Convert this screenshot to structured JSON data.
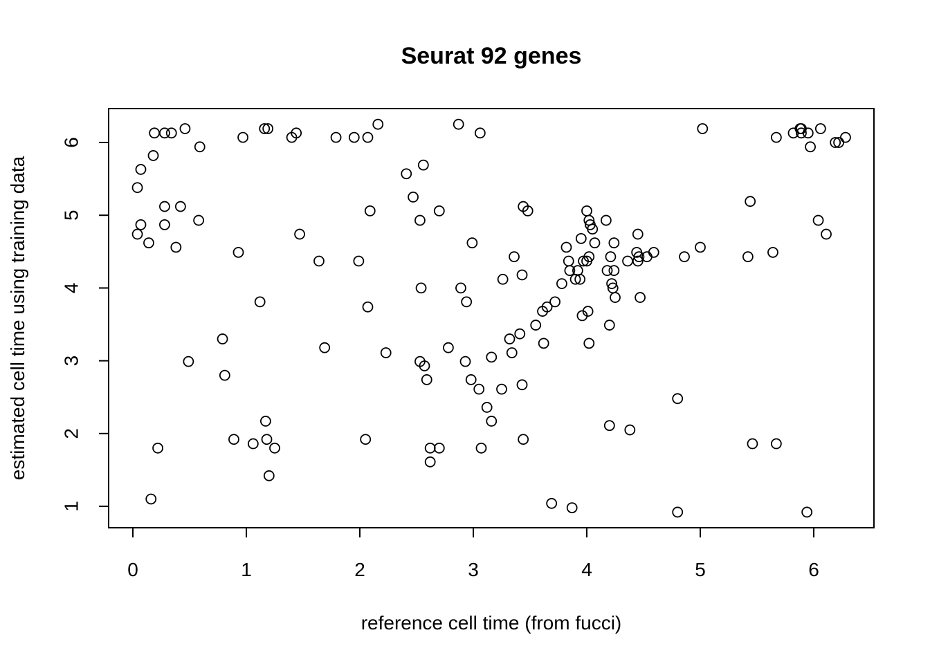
{
  "chart_data": {
    "type": "scatter",
    "title": "Seurat 92 genes",
    "xlabel": "reference cell time (from fucci)",
    "ylabel": "estimated cell time using training data",
    "xlim": [
      -0.2,
      6.5
    ],
    "ylim": [
      0.75,
      6.5
    ],
    "xticks": [
      0,
      1,
      2,
      3,
      4,
      5,
      6
    ],
    "yticks": [
      1,
      2,
      3,
      4,
      5,
      6
    ],
    "marker": "open-circle",
    "grid": false,
    "points": [
      [
        0.04,
        4.74
      ],
      [
        0.04,
        5.38
      ],
      [
        0.07,
        5.63
      ],
      [
        0.07,
        4.87
      ],
      [
        0.14,
        4.62
      ],
      [
        0.16,
        1.1
      ],
      [
        0.18,
        5.82
      ],
      [
        0.19,
        6.13
      ],
      [
        0.22,
        1.8
      ],
      [
        0.28,
        6.13
      ],
      [
        0.28,
        5.12
      ],
      [
        0.28,
        4.87
      ],
      [
        0.34,
        6.13
      ],
      [
        0.38,
        4.56
      ],
      [
        0.42,
        5.12
      ],
      [
        0.46,
        6.19
      ],
      [
        0.49,
        2.99
      ],
      [
        0.58,
        4.93
      ],
      [
        0.59,
        5.94
      ],
      [
        0.79,
        3.3
      ],
      [
        0.81,
        2.8
      ],
      [
        0.89,
        1.92
      ],
      [
        0.93,
        4.49
      ],
      [
        0.97,
        6.07
      ],
      [
        1.06,
        1.86
      ],
      [
        1.12,
        3.81
      ],
      [
        1.16,
        6.19
      ],
      [
        1.17,
        2.17
      ],
      [
        1.18,
        1.92
      ],
      [
        1.19,
        6.19
      ],
      [
        1.2,
        1.42
      ],
      [
        1.25,
        1.8
      ],
      [
        1.4,
        6.07
      ],
      [
        1.44,
        6.13
      ],
      [
        1.47,
        4.74
      ],
      [
        1.64,
        4.37
      ],
      [
        1.69,
        3.18
      ],
      [
        1.79,
        6.07
      ],
      [
        1.95,
        6.07
      ],
      [
        1.99,
        4.37
      ],
      [
        2.05,
        1.92
      ],
      [
        2.07,
        6.07
      ],
      [
        2.07,
        3.74
      ],
      [
        2.09,
        5.06
      ],
      [
        2.16,
        6.25
      ],
      [
        2.23,
        3.11
      ],
      [
        2.41,
        5.57
      ],
      [
        2.47,
        5.25
      ],
      [
        2.53,
        4.93
      ],
      [
        2.53,
        2.99
      ],
      [
        2.54,
        4.0
      ],
      [
        2.56,
        5.69
      ],
      [
        2.57,
        2.93
      ],
      [
        2.59,
        2.74
      ],
      [
        2.62,
        1.8
      ],
      [
        2.62,
        1.61
      ],
      [
        2.7,
        5.06
      ],
      [
        2.7,
        1.8
      ],
      [
        2.78,
        3.18
      ],
      [
        2.87,
        6.25
      ],
      [
        2.89,
        4.0
      ],
      [
        2.93,
        2.99
      ],
      [
        2.94,
        3.81
      ],
      [
        2.98,
        2.74
      ],
      [
        2.99,
        4.62
      ],
      [
        3.05,
        2.61
      ],
      [
        3.06,
        6.13
      ],
      [
        3.07,
        1.8
      ],
      [
        3.12,
        2.36
      ],
      [
        3.16,
        3.05
      ],
      [
        3.16,
        2.17
      ],
      [
        3.25,
        2.61
      ],
      [
        3.26,
        4.12
      ],
      [
        3.32,
        3.3
      ],
      [
        3.34,
        3.11
      ],
      [
        3.36,
        4.43
      ],
      [
        3.41,
        3.37
      ],
      [
        3.43,
        2.67
      ],
      [
        3.43,
        4.18
      ],
      [
        3.44,
        1.92
      ],
      [
        3.44,
        5.12
      ],
      [
        3.48,
        5.06
      ],
      [
        3.55,
        3.49
      ],
      [
        3.61,
        3.68
      ],
      [
        3.62,
        3.24
      ],
      [
        3.65,
        3.74
      ],
      [
        3.69,
        1.04
      ],
      [
        3.72,
        3.81
      ],
      [
        3.78,
        4.06
      ],
      [
        3.82,
        4.56
      ],
      [
        3.84,
        4.37
      ],
      [
        3.85,
        4.24
      ],
      [
        3.87,
        0.98
      ],
      [
        3.9,
        4.12
      ],
      [
        3.92,
        4.24
      ],
      [
        3.94,
        4.12
      ],
      [
        3.95,
        4.68
      ],
      [
        3.96,
        3.62
      ],
      [
        3.97,
        4.37
      ],
      [
        4.0,
        4.37
      ],
      [
        4.0,
        5.06
      ],
      [
        4.01,
        3.68
      ],
      [
        4.02,
        4.43
      ],
      [
        4.02,
        3.24
      ],
      [
        4.02,
        4.93
      ],
      [
        4.03,
        4.87
      ],
      [
        4.05,
        4.81
      ],
      [
        4.07,
        4.62
      ],
      [
        4.17,
        4.93
      ],
      [
        4.18,
        4.24
      ],
      [
        4.2,
        3.49
      ],
      [
        4.2,
        2.11
      ],
      [
        4.21,
        4.43
      ],
      [
        4.22,
        4.06
      ],
      [
        4.23,
        4.0
      ],
      [
        4.24,
        4.62
      ],
      [
        4.24,
        4.24
      ],
      [
        4.25,
        3.87
      ],
      [
        4.36,
        4.37
      ],
      [
        4.38,
        2.05
      ],
      [
        4.44,
        4.49
      ],
      [
        4.45,
        4.74
      ],
      [
        4.45,
        4.37
      ],
      [
        4.46,
        4.43
      ],
      [
        4.47,
        3.87
      ],
      [
        4.53,
        4.43
      ],
      [
        4.59,
        4.49
      ],
      [
        4.8,
        2.48
      ],
      [
        4.8,
        0.92
      ],
      [
        4.86,
        4.43
      ],
      [
        5.0,
        4.56
      ],
      [
        5.02,
        6.19
      ],
      [
        5.42,
        4.43
      ],
      [
        5.44,
        5.19
      ],
      [
        5.46,
        1.86
      ],
      [
        5.64,
        4.49
      ],
      [
        5.67,
        1.86
      ],
      [
        5.67,
        6.07
      ],
      [
        5.82,
        6.13
      ],
      [
        5.88,
        6.19
      ],
      [
        5.89,
        6.13
      ],
      [
        5.89,
        6.19
      ],
      [
        5.94,
        0.92
      ],
      [
        5.95,
        6.13
      ],
      [
        5.97,
        5.94
      ],
      [
        6.04,
        4.93
      ],
      [
        6.06,
        6.19
      ],
      [
        6.11,
        4.74
      ],
      [
        6.19,
        6.0
      ],
      [
        6.22,
        6.0
      ],
      [
        6.28,
        6.07
      ]
    ]
  }
}
